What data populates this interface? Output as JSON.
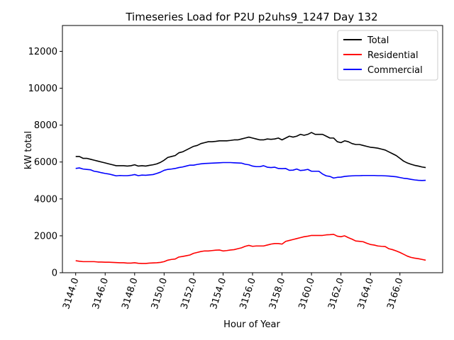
{
  "chart_data": {
    "type": "line",
    "title": "Timeseries Load for P2U p2uhs9_1247  Day 132",
    "xlabel": "Hour of Year",
    "ylabel": "kW total",
    "xlim": [
      3143.1,
      3168.9
    ],
    "ylim": [
      0,
      13400
    ],
    "x_ticks": [
      3144.0,
      3146.0,
      3148.0,
      3150.0,
      3152.0,
      3154.0,
      3156.0,
      3158.0,
      3160.0,
      3162.0,
      3164.0,
      3166.0
    ],
    "x_tick_labels": [
      "3144.0",
      "3146.0",
      "3148.0",
      "3150.0",
      "3152.0",
      "3154.0",
      "3156.0",
      "3158.0",
      "3160.0",
      "3162.0",
      "3164.0",
      "3166.0"
    ],
    "y_ticks": [
      0,
      2000,
      4000,
      6000,
      8000,
      10000,
      12000
    ],
    "y_tick_labels": [
      "0",
      "2000",
      "4000",
      "6000",
      "8000",
      "10000",
      "12000"
    ],
    "legend_position": "top-right",
    "series": [
      {
        "name": "Total",
        "color": "#000000",
        "x": [
          3144.0,
          3144.25,
          3144.5,
          3144.75,
          3145.0,
          3145.25,
          3145.5,
          3145.75,
          3146.0,
          3146.25,
          3146.5,
          3146.75,
          3147.0,
          3147.25,
          3147.5,
          3147.75,
          3148.0,
          3148.25,
          3148.5,
          3148.75,
          3149.0,
          3149.25,
          3149.5,
          3149.75,
          3150.0,
          3150.25,
          3150.5,
          3150.75,
          3151.0,
          3151.25,
          3151.5,
          3151.75,
          3152.0,
          3152.25,
          3152.5,
          3152.75,
          3153.0,
          3153.25,
          3153.5,
          3153.75,
          3154.0,
          3154.25,
          3154.5,
          3154.75,
          3155.0,
          3155.25,
          3155.5,
          3155.75,
          3156.0,
          3156.25,
          3156.5,
          3156.75,
          3157.0,
          3157.25,
          3157.5,
          3157.75,
          3158.0,
          3158.25,
          3158.5,
          3158.75,
          3159.0,
          3159.25,
          3159.5,
          3159.75,
          3160.0,
          3160.25,
          3160.5,
          3160.75,
          3161.0,
          3161.25,
          3161.5,
          3161.75,
          3162.0,
          3162.25,
          3162.5,
          3162.75,
          3163.0,
          3163.25,
          3163.5,
          3163.75,
          3164.0,
          3164.25,
          3164.5,
          3164.75,
          3165.0,
          3165.25,
          3165.5,
          3165.75,
          3166.0,
          3166.25,
          3166.5,
          3166.75,
          3167.0,
          3167.25,
          3167.5,
          3167.75
        ],
        "values": [
          6300,
          6300,
          6200,
          6200,
          6150,
          6100,
          6050,
          6000,
          5950,
          5900,
          5850,
          5800,
          5800,
          5800,
          5780,
          5800,
          5850,
          5780,
          5800,
          5780,
          5820,
          5850,
          5900,
          5980,
          6100,
          6250,
          6300,
          6350,
          6500,
          6550,
          6650,
          6750,
          6850,
          6900,
          7000,
          7050,
          7100,
          7100,
          7120,
          7150,
          7150,
          7150,
          7170,
          7200,
          7200,
          7250,
          7300,
          7350,
          7300,
          7250,
          7200,
          7200,
          7250,
          7230,
          7250,
          7300,
          7200,
          7300,
          7400,
          7350,
          7400,
          7500,
          7450,
          7500,
          7600,
          7500,
          7500,
          7500,
          7400,
          7300,
          7300,
          7100,
          7050,
          7150,
          7100,
          7000,
          6950,
          6950,
          6900,
          6850,
          6800,
          6780,
          6750,
          6700,
          6650,
          6550,
          6450,
          6350,
          6200,
          6050,
          5950,
          5880,
          5820,
          5780,
          5730,
          5700
        ]
      },
      {
        "name": "Residential",
        "color": "#ff0000",
        "x": [
          3144.0,
          3144.25,
          3144.5,
          3144.75,
          3145.0,
          3145.25,
          3145.5,
          3145.75,
          3146.0,
          3146.25,
          3146.5,
          3146.75,
          3147.0,
          3147.25,
          3147.5,
          3147.75,
          3148.0,
          3148.25,
          3148.5,
          3148.75,
          3149.0,
          3149.25,
          3149.5,
          3149.75,
          3150.0,
          3150.25,
          3150.5,
          3150.75,
          3151.0,
          3151.25,
          3151.5,
          3151.75,
          3152.0,
          3152.25,
          3152.5,
          3152.75,
          3153.0,
          3153.25,
          3153.5,
          3153.75,
          3154.0,
          3154.25,
          3154.5,
          3154.75,
          3155.0,
          3155.25,
          3155.5,
          3155.75,
          3156.0,
          3156.25,
          3156.5,
          3156.75,
          3157.0,
          3157.25,
          3157.5,
          3157.75,
          3158.0,
          3158.25,
          3158.5,
          3158.75,
          3159.0,
          3159.25,
          3159.5,
          3159.75,
          3160.0,
          3160.25,
          3160.5,
          3160.75,
          3161.0,
          3161.25,
          3161.5,
          3161.75,
          3162.0,
          3162.25,
          3162.5,
          3162.75,
          3163.0,
          3163.25,
          3163.5,
          3163.75,
          3164.0,
          3164.25,
          3164.5,
          3164.75,
          3165.0,
          3165.25,
          3165.5,
          3165.75,
          3166.0,
          3166.25,
          3166.5,
          3166.75,
          3167.0,
          3167.25,
          3167.5,
          3167.75
        ],
        "values": [
          650,
          620,
          600,
          600,
          600,
          600,
          580,
          580,
          570,
          570,
          560,
          550,
          540,
          540,
          520,
          520,
          540,
          510,
          500,
          500,
          520,
          530,
          540,
          560,
          600,
          680,
          720,
          740,
          850,
          880,
          920,
          960,
          1050,
          1100,
          1150,
          1180,
          1180,
          1200,
          1220,
          1230,
          1180,
          1200,
          1230,
          1250,
          1300,
          1350,
          1430,
          1480,
          1430,
          1450,
          1450,
          1450,
          1500,
          1550,
          1580,
          1580,
          1550,
          1700,
          1750,
          1800,
          1850,
          1900,
          1950,
          1980,
          2020,
          2020,
          2020,
          2020,
          2050,
          2060,
          2080,
          1980,
          1950,
          2000,
          1900,
          1820,
          1720,
          1700,
          1680,
          1600,
          1530,
          1500,
          1450,
          1430,
          1420,
          1300,
          1250,
          1180,
          1100,
          1000,
          900,
          830,
          790,
          760,
          720,
          680
        ]
      },
      {
        "name": "Commercial",
        "color": "#0000ff",
        "x": [
          3144.0,
          3144.25,
          3144.5,
          3144.75,
          3145.0,
          3145.25,
          3145.5,
          3145.75,
          3146.0,
          3146.25,
          3146.5,
          3146.75,
          3147.0,
          3147.25,
          3147.5,
          3147.75,
          3148.0,
          3148.25,
          3148.5,
          3148.75,
          3149.0,
          3149.25,
          3149.5,
          3149.75,
          3150.0,
          3150.25,
          3150.5,
          3150.75,
          3151.0,
          3151.25,
          3151.5,
          3151.75,
          3152.0,
          3152.25,
          3152.5,
          3152.75,
          3153.0,
          3153.25,
          3153.5,
          3153.75,
          3154.0,
          3154.25,
          3154.5,
          3154.75,
          3155.0,
          3155.25,
          3155.5,
          3155.75,
          3156.0,
          3156.25,
          3156.5,
          3156.75,
          3157.0,
          3157.25,
          3157.5,
          3157.75,
          3158.0,
          3158.25,
          3158.5,
          3158.75,
          3159.0,
          3159.25,
          3159.5,
          3159.75,
          3160.0,
          3160.25,
          3160.5,
          3160.75,
          3161.0,
          3161.25,
          3161.5,
          3161.75,
          3162.0,
          3162.25,
          3162.5,
          3162.75,
          3163.0,
          3163.25,
          3163.5,
          3163.75,
          3164.0,
          3164.25,
          3164.5,
          3164.75,
          3165.0,
          3165.25,
          3165.5,
          3165.75,
          3166.0,
          3166.25,
          3166.5,
          3166.75,
          3167.0,
          3167.25,
          3167.5,
          3167.75
        ],
        "values": [
          5650,
          5680,
          5620,
          5600,
          5580,
          5500,
          5470,
          5420,
          5380,
          5350,
          5300,
          5250,
          5270,
          5260,
          5260,
          5280,
          5320,
          5260,
          5290,
          5280,
          5300,
          5320,
          5380,
          5450,
          5550,
          5600,
          5620,
          5650,
          5700,
          5730,
          5780,
          5830,
          5830,
          5870,
          5900,
          5920,
          5930,
          5940,
          5950,
          5960,
          5970,
          5970,
          5970,
          5960,
          5950,
          5940,
          5880,
          5850,
          5780,
          5750,
          5750,
          5800,
          5720,
          5700,
          5720,
          5650,
          5640,
          5650,
          5550,
          5560,
          5620,
          5540,
          5560,
          5600,
          5500,
          5500,
          5500,
          5350,
          5250,
          5220,
          5130,
          5170,
          5180,
          5220,
          5240,
          5250,
          5260,
          5260,
          5270,
          5270,
          5270,
          5270,
          5260,
          5260,
          5250,
          5240,
          5220,
          5200,
          5160,
          5120,
          5100,
          5060,
          5030,
          5010,
          5000,
          5010
        ]
      }
    ]
  }
}
